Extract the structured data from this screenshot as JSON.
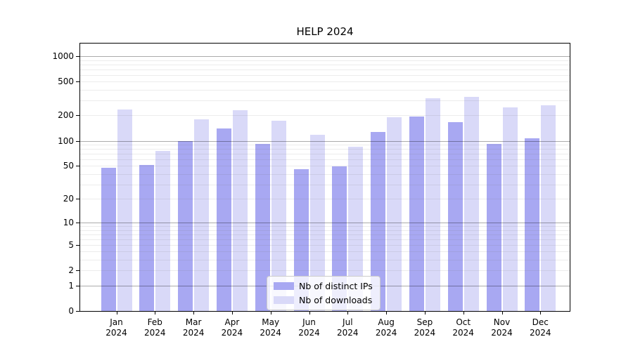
{
  "title": "HELP 2024",
  "legend": {
    "items": [
      {
        "label": "Nb of distinct IPs",
        "color": "#a8a8f2"
      },
      {
        "label": "Nb of downloads",
        "color": "#d9d9f8"
      }
    ]
  },
  "chart_data": {
    "type": "bar",
    "title": "HELP 2024",
    "categories": [
      "Jan 2024",
      "Feb 2024",
      "Mar 2024",
      "Apr 2024",
      "May 2024",
      "Jun 2024",
      "Jul 2024",
      "Aug 2024",
      "Sep 2024",
      "Oct 2024",
      "Nov 2024",
      "Dec 2024"
    ],
    "series": [
      {
        "name": "Nb of distinct IPs",
        "color": "#a8a8f2",
        "values": [
          48,
          51,
          100,
          140,
          92,
          46,
          49,
          126,
          193,
          167,
          91,
          108
        ]
      },
      {
        "name": "Nb of downloads",
        "color": "#d9d9f8",
        "values": [
          235,
          75,
          180,
          230,
          172,
          118,
          85,
          190,
          320,
          332,
          250,
          265
        ]
      }
    ],
    "xlabel": "",
    "ylabel": "",
    "yscale": "log1p",
    "ylim": [
      0,
      1450
    ],
    "yticks": [
      0,
      1,
      2,
      5,
      10,
      20,
      50,
      100,
      200,
      500,
      1000
    ],
    "major_gridlines": [
      1,
      10,
      100,
      1000
    ],
    "minor_gridlines": [
      2,
      3,
      4,
      5,
      6,
      7,
      8,
      9,
      20,
      30,
      40,
      50,
      60,
      70,
      80,
      90,
      200,
      300,
      400,
      500,
      600,
      700,
      800,
      900
    ],
    "grid": true,
    "legend_position": "lower center",
    "colors": {
      "major_grid": "rgba(0,0,0,0.33)",
      "minor_grid": "rgba(110,110,110,0.13)",
      "axis": "#000000",
      "background": "#ffffff"
    }
  }
}
